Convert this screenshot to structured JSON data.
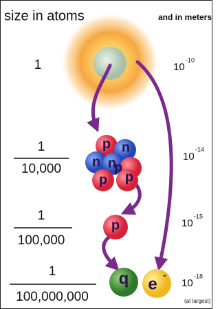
{
  "header": {
    "left": "size in atoms",
    "right": "and in meters"
  },
  "rows": [
    {
      "atoms": {
        "numerator": "1"
      },
      "meters": {
        "base": "10",
        "exponent": "-10"
      }
    },
    {
      "atoms": {
        "numerator": "1",
        "denominator": "10,000"
      },
      "meters": {
        "base": "10",
        "exponent": "-14"
      }
    },
    {
      "atoms": {
        "numerator": "1",
        "denominator": "100,000"
      },
      "meters": {
        "base": "10",
        "exponent": "-15"
      }
    },
    {
      "atoms": {
        "numerator": "1",
        "denominator": "100,000,000"
      },
      "meters": {
        "base": "10",
        "exponent": "-18",
        "note": "(at largest)"
      }
    }
  ],
  "particles": {
    "nucleus": [
      "p",
      "n",
      "n",
      "n",
      "p",
      "p",
      "p"
    ],
    "proton": "p",
    "quark": "q",
    "electron": {
      "base": "e",
      "exponent": "-"
    }
  }
}
